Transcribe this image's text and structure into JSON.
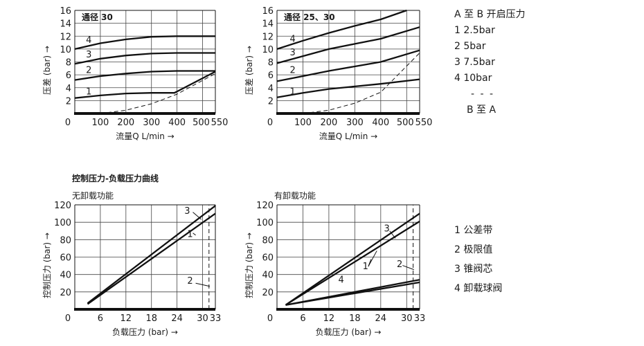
{
  "section_title": "控制压力-负载压力曲线",
  "legend_top": {
    "heading": "A 至 B 开启压力",
    "items": [
      "1 2.5bar",
      "2 5bar",
      "3 7.5bar",
      "4 10bar"
    ],
    "separator": "- - -",
    "tail": "B 至 A"
  },
  "legend_bottom": {
    "items": [
      "1 公差带",
      "2 极限值",
      "3 锥阀芯",
      "4 卸载球阀"
    ]
  },
  "chart_data": [
    {
      "type": "line",
      "title": "通径 30",
      "xlabel": "流量Q L/min →",
      "ylabel": "压差 (bar) →",
      "xlim": [
        0,
        550
      ],
      "ylim": [
        0,
        16
      ],
      "xticks": [
        "0",
        "100",
        "200",
        "300",
        "400",
        "500",
        "550"
      ],
      "yticks": [
        "2",
        "4",
        "6",
        "8",
        "10",
        "12",
        "14",
        "16"
      ],
      "series": [
        {
          "name": "1",
          "x": [
            0,
            100,
            200,
            300,
            390,
            550
          ],
          "y": [
            2.4,
            2.8,
            3.1,
            3.2,
            3.2,
            6.5
          ]
        },
        {
          "name": "2",
          "x": [
            0,
            100,
            200,
            300,
            400,
            550
          ],
          "y": [
            5.2,
            5.8,
            6.2,
            6.5,
            6.6,
            6.6
          ]
        },
        {
          "name": "3",
          "x": [
            0,
            100,
            200,
            300,
            400,
            550
          ],
          "y": [
            7.7,
            8.5,
            9.0,
            9.3,
            9.4,
            9.4
          ]
        },
        {
          "name": "4",
          "x": [
            0,
            100,
            200,
            300,
            400,
            550
          ],
          "y": [
            10.0,
            10.9,
            11.5,
            11.9,
            12.0,
            12.0
          ]
        },
        {
          "name": "B 至 A",
          "dashed": true,
          "x": [
            100,
            200,
            300,
            400,
            550
          ],
          "y": [
            0,
            0.5,
            1.5,
            3.0,
            6.2
          ]
        }
      ],
      "labels": [
        "1",
        "2",
        "3",
        "4"
      ]
    },
    {
      "type": "line",
      "title": "通径 25、30",
      "xlabel": "流量Q L/min →",
      "ylabel": "压差 (bar) →",
      "xlim": [
        0,
        550
      ],
      "ylim": [
        0,
        16
      ],
      "xticks": [
        "0",
        "100",
        "200",
        "300",
        "400",
        "500",
        "550"
      ],
      "yticks": [
        "2",
        "4",
        "6",
        "8",
        "10",
        "12",
        "14",
        "16"
      ],
      "series": [
        {
          "name": "1",
          "x": [
            0,
            100,
            200,
            300,
            400,
            550
          ],
          "y": [
            2.5,
            3.2,
            3.8,
            4.2,
            4.6,
            5.3
          ]
        },
        {
          "name": "2",
          "x": [
            0,
            100,
            200,
            300,
            400,
            550
          ],
          "y": [
            5.0,
            5.8,
            6.6,
            7.3,
            8.0,
            9.8
          ]
        },
        {
          "name": "3",
          "x": [
            0,
            100,
            200,
            300,
            400,
            550
          ],
          "y": [
            7.8,
            8.9,
            10.0,
            10.8,
            11.6,
            13.4
          ]
        },
        {
          "name": "4",
          "x": [
            0,
            100,
            200,
            300,
            400,
            500
          ],
          "y": [
            10.0,
            11.3,
            12.5,
            13.6,
            14.6,
            16.0
          ]
        },
        {
          "name": "B 至 A",
          "dashed": true,
          "x": [
            100,
            200,
            300,
            400,
            550
          ],
          "y": [
            0,
            0.5,
            1.6,
            3.3,
            9.4
          ]
        }
      ],
      "labels": [
        "1",
        "2",
        "3",
        "4"
      ]
    },
    {
      "type": "line",
      "subtitle": "无卸载功能",
      "xlabel": "负载压力 (bar) →",
      "ylabel": "控制压力 (bar) →",
      "xlim": [
        0,
        33
      ],
      "ylim": [
        0,
        120
      ],
      "xticks": [
        "0",
        "6",
        "12",
        "18",
        "24",
        "30",
        "33"
      ],
      "yticks": [
        "20",
        "40",
        "60",
        "80",
        "100",
        "120"
      ],
      "series": [
        {
          "name": "3",
          "x": [
            3,
            33
          ],
          "y": [
            7,
            119
          ]
        },
        {
          "name": "1",
          "x": [
            3,
            33
          ],
          "y": [
            6,
            110
          ]
        },
        {
          "name": "2",
          "dashed": true,
          "vertical": true,
          "x": [
            31.5,
            31.5
          ],
          "y": [
            0,
            120
          ]
        }
      ],
      "labels": [
        "3",
        "1",
        "2"
      ]
    },
    {
      "type": "line",
      "subtitle": "有卸载功能",
      "xlabel": "负载压力 (bar) →",
      "ylabel": "控制压力 (bar) →",
      "xlim": [
        0,
        33
      ],
      "ylim": [
        0,
        120
      ],
      "xticks": [
        "0",
        "6",
        "12",
        "18",
        "24",
        "30",
        "33"
      ],
      "yticks": [
        "20",
        "40",
        "60",
        "80",
        "100",
        "120"
      ],
      "series": [
        {
          "name": "3",
          "x": [
            2,
            33
          ],
          "y": [
            5,
            110
          ]
        },
        {
          "name": "1a",
          "x": [
            2,
            33
          ],
          "y": [
            5,
            101
          ]
        },
        {
          "name": "4",
          "x": [
            2,
            33
          ],
          "y": [
            5,
            34
          ]
        },
        {
          "name": "1b",
          "x": [
            2,
            33
          ],
          "y": [
            5,
            31
          ]
        },
        {
          "name": "2",
          "dashed": true,
          "vertical": true,
          "x": [
            31.5,
            31.5
          ],
          "y": [
            0,
            120
          ]
        }
      ],
      "labels": [
        "3",
        "1",
        "4",
        "2"
      ]
    }
  ]
}
